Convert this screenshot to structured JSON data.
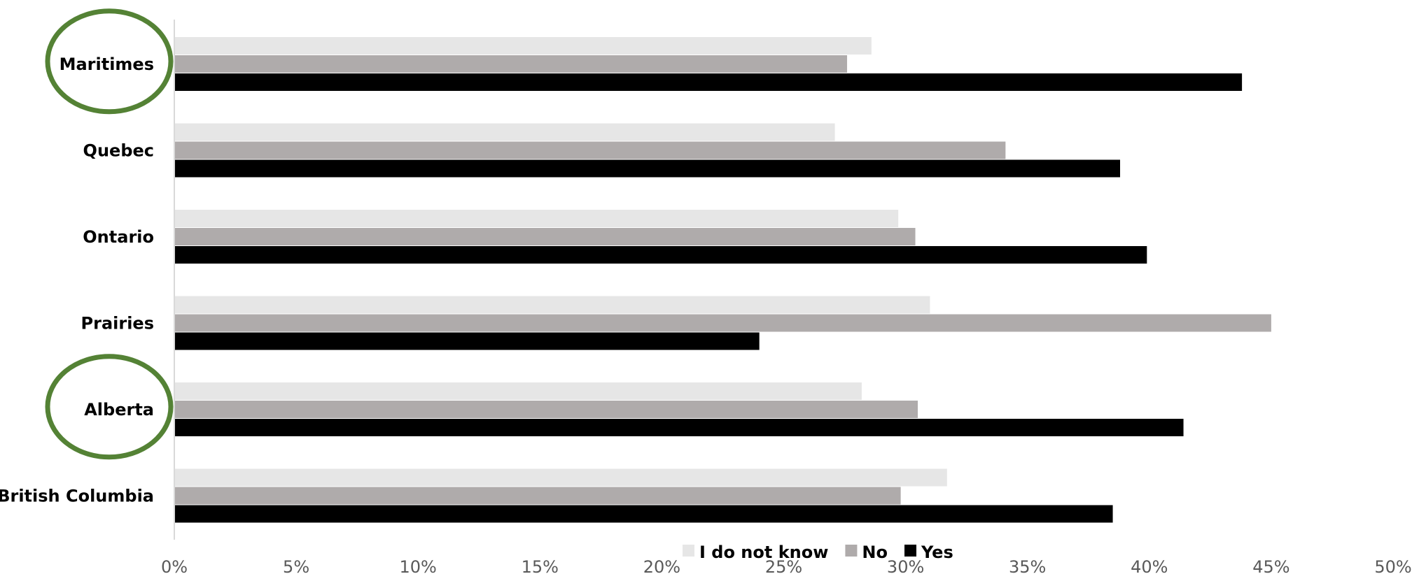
{
  "chart_data": {
    "type": "bar",
    "orientation": "horizontal",
    "categories": [
      "Maritimes",
      "Quebec",
      "Ontario",
      "Prairies",
      "Alberta",
      "British Columbia"
    ],
    "series": [
      {
        "name": "I do not know",
        "color": "#e6e6e6",
        "values": [
          28.6,
          27.1,
          29.7,
          31.0,
          28.2,
          31.7
        ]
      },
      {
        "name": "No",
        "color": "#afabab",
        "values": [
          27.6,
          34.1,
          30.4,
          45.0,
          30.5,
          29.8
        ]
      },
      {
        "name": "Yes",
        "color": "#000000",
        "values": [
          43.8,
          38.8,
          39.9,
          24.0,
          41.4,
          38.5
        ]
      }
    ],
    "xticks": [
      "0%",
      "5%",
      "10%",
      "15%",
      "20%",
      "25%",
      "30%",
      "35%",
      "40%",
      "45%",
      "50%"
    ],
    "xlim": [
      0,
      50
    ],
    "title": "",
    "xlabel": "",
    "ylabel": "",
    "grid": false,
    "legend_position": "bottom",
    "highlighted_categories": [
      "Maritimes",
      "Alberta"
    ],
    "highlight_color": "#548235"
  }
}
